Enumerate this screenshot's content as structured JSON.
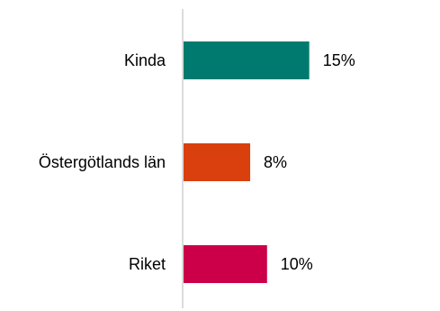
{
  "chart_data": {
    "type": "bar",
    "orientation": "horizontal",
    "categories": [
      "Kinda",
      "Östergötlands län",
      "Riket"
    ],
    "values": [
      15,
      8,
      10
    ],
    "value_labels": [
      "15%",
      "8%",
      "10%"
    ],
    "value_unit": "%",
    "colors": [
      "#007A6E",
      "#D9400E",
      "#CC0049"
    ],
    "axis_color": "#D0D0D0",
    "xlim": [
      0,
      29
    ],
    "grid": false,
    "legend": "none",
    "title": "",
    "xlabel": "",
    "ylabel": ""
  }
}
